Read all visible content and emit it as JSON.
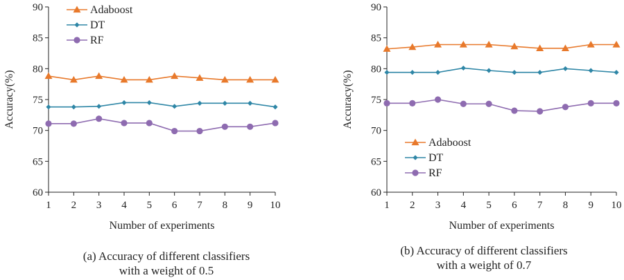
{
  "chart_data": [
    {
      "type": "line",
      "title": "",
      "caption_line1": "(a) Accuracy of different classifiers",
      "caption_line2": "with a weight of 0.5",
      "xlabel": "Number of experiments",
      "ylabel": "Accuracy(%)",
      "ylim": [
        60,
        90
      ],
      "yticks": [
        60,
        65,
        70,
        75,
        80,
        85,
        90
      ],
      "x": [
        1,
        2,
        3,
        4,
        5,
        6,
        7,
        8,
        9,
        10
      ],
      "legend_position": "top-left",
      "series": [
        {
          "name": "Adaboost",
          "marker": "triangle",
          "color": "#E8792B",
          "values": [
            78.8,
            78.2,
            78.8,
            78.2,
            78.2,
            78.8,
            78.5,
            78.2,
            78.2,
            78.2
          ]
        },
        {
          "name": "DT",
          "marker": "diamond",
          "color": "#2E86A6",
          "values": [
            73.8,
            73.8,
            73.9,
            74.5,
            74.5,
            73.9,
            74.4,
            74.4,
            74.4,
            73.8
          ]
        },
        {
          "name": "RF",
          "marker": "circle",
          "color": "#8E6BB0",
          "values": [
            71.1,
            71.1,
            71.9,
            71.2,
            71.2,
            69.9,
            69.9,
            70.6,
            70.6,
            71.2
          ]
        }
      ]
    },
    {
      "type": "line",
      "title": "",
      "caption_line1": "(b) Accuracy of different classifiers",
      "caption_line2": "with a weight of 0.7",
      "xlabel": "Number of experiments",
      "ylabel": "Accuracy(%)",
      "ylim": [
        60,
        90
      ],
      "yticks": [
        60,
        65,
        70,
        75,
        80,
        85,
        90
      ],
      "x": [
        1,
        2,
        3,
        4,
        5,
        6,
        7,
        8,
        9,
        10
      ],
      "legend_position": "lower-left",
      "series": [
        {
          "name": "Adaboost",
          "marker": "triangle",
          "color": "#E8792B",
          "values": [
            83.2,
            83.5,
            83.9,
            83.9,
            83.9,
            83.6,
            83.3,
            83.3,
            83.9,
            83.9
          ]
        },
        {
          "name": "DT",
          "marker": "diamond",
          "color": "#2E86A6",
          "values": [
            79.4,
            79.4,
            79.4,
            80.1,
            79.7,
            79.4,
            79.4,
            80.0,
            79.7,
            79.4
          ]
        },
        {
          "name": "RF",
          "marker": "circle",
          "color": "#8E6BB0",
          "values": [
            74.4,
            74.4,
            75.0,
            74.3,
            74.3,
            73.2,
            73.1,
            73.8,
            74.4,
            74.4
          ]
        }
      ]
    }
  ]
}
